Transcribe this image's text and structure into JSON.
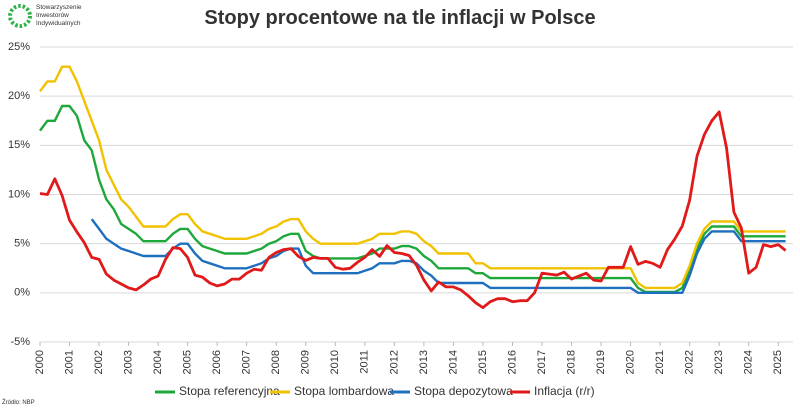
{
  "logo": {
    "lines": [
      "Stowarzyszenie",
      "Inwestorów",
      "Indywidualnych"
    ]
  },
  "source": "Źródło: NBP",
  "chart_data": {
    "type": "line",
    "title": "Stopy procentowe na tle inflacji w Polsce",
    "grid": true,
    "legend": "bottom",
    "xlim": [
      2000,
      2025.5
    ],
    "xticks": [
      2000,
      2001,
      2002,
      2003,
      2004,
      2005,
      2006,
      2007,
      2008,
      2009,
      2010,
      2011,
      2012,
      2013,
      2014,
      2015,
      2016,
      2017,
      2018,
      2019,
      2020,
      2021,
      2022,
      2023,
      2024,
      2025
    ],
    "ylim": [
      -5,
      25
    ],
    "yticks": [
      {
        "value": -5,
        "label": "-5%"
      },
      {
        "value": 0,
        "label": "0%"
      },
      {
        "value": 5,
        "label": "5%"
      },
      {
        "value": 10,
        "label": "10%"
      },
      {
        "value": 15,
        "label": "15%"
      },
      {
        "value": 20,
        "label": "20%"
      },
      {
        "value": 25,
        "label": "25%"
      }
    ],
    "x": [
      2000,
      2000.25,
      2000.5,
      2000.75,
      2001,
      2001.25,
      2001.5,
      2001.75,
      2002,
      2002.25,
      2002.5,
      2002.75,
      2003,
      2003.25,
      2003.5,
      2003.75,
      2004,
      2004.25,
      2004.5,
      2004.75,
      2005,
      2005.25,
      2005.5,
      2005.75,
      2006,
      2006.25,
      2006.5,
      2006.75,
      2007,
      2007.25,
      2007.5,
      2007.75,
      2008,
      2008.25,
      2008.5,
      2008.75,
      2009,
      2009.25,
      2009.5,
      2009.75,
      2010,
      2010.25,
      2010.5,
      2010.75,
      2011,
      2011.25,
      2011.5,
      2011.75,
      2012,
      2012.25,
      2012.5,
      2012.75,
      2013,
      2013.25,
      2013.5,
      2013.75,
      2014,
      2014.25,
      2014.5,
      2014.75,
      2015,
      2015.25,
      2015.5,
      2015.75,
      2016,
      2016.25,
      2016.5,
      2016.75,
      2017,
      2017.25,
      2017.5,
      2017.75,
      2018,
      2018.25,
      2018.5,
      2018.75,
      2019,
      2019.25,
      2019.5,
      2019.75,
      2020,
      2020.25,
      2020.5,
      2020.75,
      2021,
      2021.25,
      2021.5,
      2021.75,
      2022,
      2022.25,
      2022.5,
      2022.75,
      2023,
      2023.25,
      2023.5,
      2023.75,
      2024,
      2024.25,
      2024.5,
      2024.75,
      2025,
      2025.25
    ],
    "series": [
      {
        "name": "Stopa referencyjna",
        "color": "#1fa83a",
        "values": [
          16.5,
          17.5,
          17.5,
          19,
          19,
          18,
          15.5,
          14.5,
          11.5,
          9.5,
          8.5,
          7,
          6.5,
          6,
          5.25,
          5.25,
          5.25,
          5.25,
          6,
          6.5,
          6.5,
          5.5,
          4.75,
          4.5,
          4.25,
          4,
          4,
          4,
          4,
          4.25,
          4.5,
          5,
          5.25,
          5.75,
          6,
          6,
          4.25,
          3.75,
          3.5,
          3.5,
          3.5,
          3.5,
          3.5,
          3.5,
          3.75,
          4,
          4.5,
          4.5,
          4.5,
          4.75,
          4.75,
          4.5,
          3.75,
          3.25,
          2.5,
          2.5,
          2.5,
          2.5,
          2.5,
          2,
          2,
          1.5,
          1.5,
          1.5,
          1.5,
          1.5,
          1.5,
          1.5,
          1.5,
          1.5,
          1.5,
          1.5,
          1.5,
          1.5,
          1.5,
          1.5,
          1.5,
          1.5,
          1.5,
          1.5,
          1.5,
          0.5,
          0.1,
          0.1,
          0.1,
          0.1,
          0.1,
          0.5,
          2.25,
          4.5,
          6,
          6.75,
          6.75,
          6.75,
          6.75,
          5.75,
          5.75,
          5.75,
          5.75,
          5.75,
          5.75,
          5.75
        ]
      },
      {
        "name": "Stopa lombardowa",
        "color": "#f2c100",
        "values": [
          20.5,
          21.5,
          21.5,
          23,
          23,
          21.5,
          19.5,
          17.5,
          15.5,
          12.5,
          11,
          9.5,
          8.75,
          7.75,
          6.75,
          6.75,
          6.75,
          6.75,
          7.5,
          8,
          8,
          7,
          6.25,
          6,
          5.75,
          5.5,
          5.5,
          5.5,
          5.5,
          5.75,
          6,
          6.5,
          6.75,
          7.25,
          7.5,
          7.5,
          6.25,
          5.5,
          5,
          5,
          5,
          5,
          5,
          5,
          5.25,
          5.5,
          6,
          6,
          6,
          6.25,
          6.25,
          6,
          5.25,
          4.75,
          4,
          4,
          4,
          4,
          4,
          3,
          3,
          2.5,
          2.5,
          2.5,
          2.5,
          2.5,
          2.5,
          2.5,
          2.5,
          2.5,
          2.5,
          2.5,
          2.5,
          2.5,
          2.5,
          2.5,
          2.5,
          2.5,
          2.5,
          2.5,
          2.5,
          1,
          0.5,
          0.5,
          0.5,
          0.5,
          0.5,
          1,
          2.75,
          5,
          6.5,
          7.25,
          7.25,
          7.25,
          7.25,
          6.25,
          6.25,
          6.25,
          6.25,
          6.25,
          6.25,
          6.25
        ]
      },
      {
        "name": "Stopa depozytowa",
        "color": "#1f6fbf",
        "values": [
          null,
          null,
          null,
          null,
          null,
          null,
          null,
          7.5,
          6.5,
          5.5,
          5,
          4.5,
          4.25,
          4,
          3.75,
          3.75,
          3.75,
          3.75,
          4.5,
          5,
          5,
          4,
          3.25,
          3,
          2.75,
          2.5,
          2.5,
          2.5,
          2.5,
          2.75,
          3,
          3.5,
          3.75,
          4.25,
          4.5,
          4.5,
          2.75,
          2,
          2,
          2,
          2,
          2,
          2,
          2,
          2.25,
          2.5,
          3,
          3,
          3,
          3.25,
          3.25,
          3,
          2.25,
          1.75,
          1,
          1,
          1,
          1,
          1,
          1,
          1,
          0.5,
          0.5,
          0.5,
          0.5,
          0.5,
          0.5,
          0.5,
          0.5,
          0.5,
          0.5,
          0.5,
          0.5,
          0.5,
          0.5,
          0.5,
          0.5,
          0.5,
          0.5,
          0.5,
          0.5,
          0,
          0,
          0,
          0,
          0,
          0,
          0,
          1.75,
          4,
          5.5,
          6.25,
          6.25,
          6.25,
          6.25,
          5.25,
          5.25,
          5.25,
          5.25,
          5.25,
          5.25,
          5.25
        ]
      },
      {
        "name": "Inflacja (r/r)",
        "color": "#e01a1a",
        "values": [
          10.1,
          10,
          11.6,
          9.9,
          7.4,
          6.2,
          5.1,
          3.6,
          3.4,
          1.9,
          1.3,
          0.9,
          0.5,
          0.3,
          0.8,
          1.4,
          1.7,
          3.4,
          4.6,
          4.5,
          3.6,
          1.8,
          1.6,
          1,
          0.7,
          0.9,
          1.4,
          1.4,
          2,
          2.4,
          2.3,
          3.6,
          4.1,
          4.4,
          4.5,
          3.7,
          3.3,
          3.6,
          3.5,
          3.5,
          2.6,
          2.4,
          2.5,
          3.1,
          3.6,
          4.4,
          3.7,
          4.8,
          4.1,
          4,
          3.8,
          2.8,
          1.3,
          0.2,
          1.1,
          0.6,
          0.6,
          0.3,
          -0.3,
          -1,
          -1.5,
          -0.9,
          -0.6,
          -0.6,
          -0.9,
          -0.8,
          -0.8,
          0,
          2,
          1.9,
          1.8,
          2.1,
          1.4,
          1.7,
          2,
          1.3,
          1.2,
          2.6,
          2.6,
          2.6,
          4.7,
          2.9,
          3.2,
          3,
          2.6,
          4.4,
          5.5,
          6.8,
          9.4,
          13.9,
          16.1,
          17.5,
          18.4,
          14.7,
          8.2,
          6.6,
          2,
          2.6,
          4.9,
          4.7,
          4.9,
          4.3
        ]
      }
    ]
  }
}
